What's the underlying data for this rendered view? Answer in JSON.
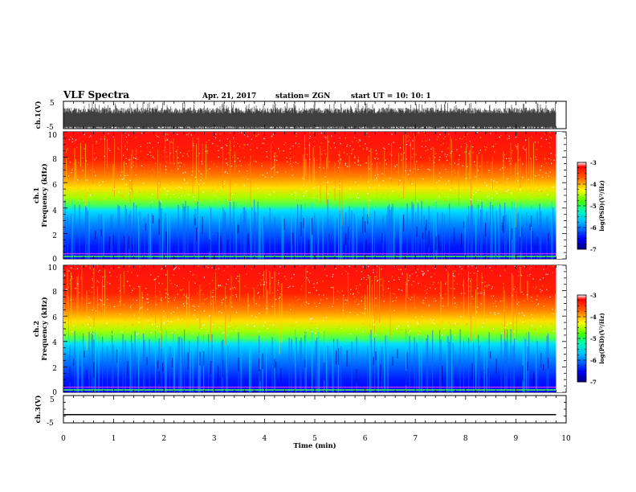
{
  "header": {
    "title": "VLF Spectra",
    "date": "Apr. 21, 2017",
    "station": "station= ZGN",
    "start": "start  UT =   10: 10: 1"
  },
  "chart_data": {
    "type": "heatmap",
    "x_axis": {
      "label": "Time  (min)",
      "range": [
        0,
        10
      ],
      "ticks": [
        0,
        1,
        2,
        3,
        4,
        5,
        6,
        7,
        8,
        9,
        10
      ],
      "tick_labels": [
        "0",
        "1",
        "2",
        "3",
        "4",
        "5",
        "6",
        "7",
        "8",
        "9",
        "10"
      ],
      "data_end": 9.8
    },
    "panels": [
      {
        "id": "ch1-waveform",
        "type": "line",
        "ylabel": "ch.1(V)",
        "ylim": [
          -5,
          5
        ],
        "ytick_labels": [
          "5",
          "-5"
        ],
        "shape": "dense noise filling roughly -5 to 2.5 V"
      },
      {
        "id": "ch1-spectrogram",
        "type": "heatmap",
        "ylabel_lines": [
          "ch.1",
          "Frequency  (kHz)"
        ],
        "ylim": [
          0,
          10
        ],
        "ytick_labels": [
          "0",
          "2",
          "4",
          "6",
          "8",
          "10"
        ],
        "low_band_top_khz": 4,
        "colorbar": {
          "label": "log(PSD)(V²/Hz)",
          "range": [
            -7,
            -3
          ],
          "tick_labels": [
            "-3",
            "-4",
            "-5",
            "-6",
            "-7"
          ]
        }
      },
      {
        "id": "ch2-spectrogram",
        "type": "heatmap",
        "ylabel_lines": [
          "ch.2",
          "Frequency  (kHz)"
        ],
        "ylim": [
          0,
          10
        ],
        "ytick_labels": [
          "0",
          "2",
          "4",
          "6",
          "8",
          "10"
        ],
        "low_band_top_khz": 4,
        "colorbar": {
          "label": "log(PSD)(V²/Hz)",
          "range": [
            -7,
            -3
          ],
          "tick_labels": [
            "-3",
            "-4",
            "-5",
            "-6",
            "-7"
          ]
        }
      },
      {
        "id": "ch3-waveform",
        "type": "line",
        "ylabel": "ch.3(V)",
        "ylim": [
          -5,
          5
        ],
        "ytick_labels": [
          "5",
          "-5"
        ],
        "constant_value": -2
      }
    ],
    "colormap": [
      "#00007f",
      "#0000ff",
      "#007fff",
      "#00ffff",
      "#7fff7f",
      "#ffff00",
      "#ff7f00",
      "#ff0000",
      "#7f0000"
    ]
  }
}
